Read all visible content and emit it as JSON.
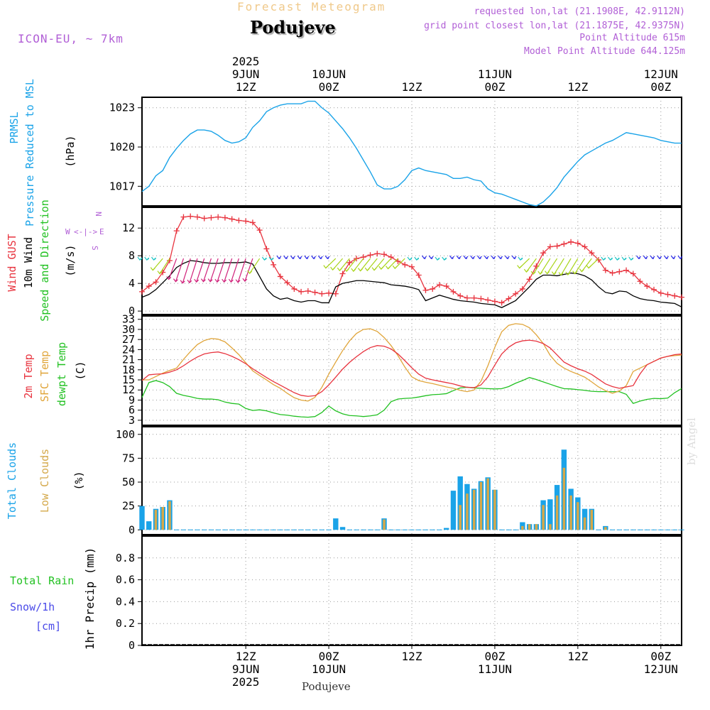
{
  "header": {
    "forecast_label": "Forecast Meteogram",
    "location": "Podujeve",
    "model": "ICON-EU, ~ 7km",
    "requested": "requested lon,lat (21.1908E, 42.9112N)",
    "grid_point": "grid point closest lon,lat (21.1875E, 42.9375N)",
    "point_altitude": "Point Altitude 615m",
    "model_altitude": "Model Point Altitude 644.125m",
    "footer_location": "Podujeve",
    "watermark": "by Angel"
  },
  "colors": {
    "pressure": "#1aa3e8",
    "gust": "#e8343f",
    "wind": "#000000",
    "temp2m": "#e8343f",
    "sfc": "#e0a53a",
    "dewpt": "#22c122",
    "total_clouds": "#1aa3e8",
    "low_clouds": "#d4a84a",
    "rain": "#22c122",
    "snow": "#4a4ae8",
    "purple": "#b15fd6"
  },
  "time_axis": {
    "hours": 78,
    "x_start_hour": -3,
    "top_labels": [
      {
        "hour": 12,
        "lines": [
          "2025",
          "9JUN",
          "12Z"
        ]
      },
      {
        "hour": 24,
        "lines": [
          "10JUN",
          "00Z"
        ]
      },
      {
        "hour": 36,
        "lines": [
          "12Z"
        ]
      },
      {
        "hour": 48,
        "lines": [
          "11JUN",
          "00Z"
        ]
      },
      {
        "hour": 60,
        "lines": [
          "12Z"
        ]
      },
      {
        "hour": 72,
        "lines": [
          "12JUN",
          "00Z"
        ]
      }
    ],
    "bottom_labels": [
      {
        "hour": 12,
        "lines": [
          "12Z",
          "9JUN",
          "2025"
        ]
      },
      {
        "hour": 24,
        "lines": [
          "00Z",
          "10JUN"
        ]
      },
      {
        "hour": 36,
        "lines": [
          "12Z"
        ]
      },
      {
        "hour": 48,
        "lines": [
          "00Z",
          "11JUN"
        ]
      },
      {
        "hour": 60,
        "lines": [
          "12Z"
        ]
      },
      {
        "hour": 72,
        "lines": [
          "00Z",
          "12JUN"
        ]
      }
    ]
  },
  "panel_labels": {
    "pressure": [
      {
        "text": "PRMSL",
        "color": "#1aa3e8"
      },
      {
        "text": "Pressure Reduced to MSL",
        "color": "#1aa3e8"
      },
      {
        "text": "(hPa)",
        "color": "#000000"
      }
    ],
    "wind": [
      {
        "text": "Wind GUST",
        "color": "#e8343f"
      },
      {
        "text": "10m Wind",
        "color": "#000000"
      },
      {
        "text": "Speed and Direction",
        "color": "#22c122"
      },
      {
        "text": "(m/s)",
        "color": "#000000"
      }
    ],
    "compass": {
      "n": "N",
      "s": "S",
      "w": "W",
      "e": "E"
    },
    "temp": [
      {
        "text": "2m Temp",
        "color": "#e8343f"
      },
      {
        "text": "SFC Temp",
        "color": "#e0a53a"
      },
      {
        "text": "dewpt Temp",
        "color": "#22c122"
      },
      {
        "text": "(C)",
        "color": "#000000"
      }
    ],
    "clouds": [
      {
        "text": "Total Clouds",
        "color": "#1aa3e8"
      },
      {
        "text": "Low Clouds",
        "color": "#d4a84a"
      },
      {
        "text": "(%)",
        "color": "#000000"
      }
    ],
    "precip_left": [
      {
        "text": "Total  Rain",
        "color": "#22c122"
      },
      {
        "text": "Snow/1h",
        "color": "#4a4ae8"
      },
      {
        "text": "[cm]",
        "color": "#4a4ae8"
      }
    ],
    "precip_axis": "1hr Precip (mm)"
  },
  "chart_data": [
    {
      "type": "line",
      "name": "pressure",
      "ylabel": "(hPa)",
      "ylim": [
        1015.5,
        1023.8
      ],
      "yticks": [
        1017,
        1020,
        1023
      ],
      "hours": [
        -3,
        -2,
        -1,
        0,
        1,
        2,
        3,
        4,
        5,
        6,
        7,
        8,
        9,
        10,
        11,
        12,
        13,
        14,
        15,
        16,
        17,
        18,
        19,
        20,
        21,
        22,
        23,
        24,
        25,
        26,
        27,
        28,
        29,
        30,
        31,
        32,
        33,
        34,
        35,
        36,
        37,
        38,
        39,
        40,
        41,
        42,
        43,
        44,
        45,
        46,
        47,
        48,
        49,
        50,
        51,
        52,
        53,
        54,
        55,
        56,
        57,
        58,
        59,
        60,
        61,
        62,
        63,
        64,
        65,
        66,
        67,
        68,
        69,
        70,
        71,
        72,
        73,
        74,
        75
      ],
      "values": [
        1016.6,
        1017.0,
        1017.8,
        1018.2,
        1019.2,
        1019.9,
        1020.5,
        1021.0,
        1021.3,
        1021.3,
        1021.2,
        1020.9,
        1020.5,
        1020.3,
        1020.4,
        1020.7,
        1021.5,
        1022.0,
        1022.7,
        1023.0,
        1023.2,
        1023.3,
        1023.3,
        1023.3,
        1023.5,
        1023.5,
        1023.0,
        1022.6,
        1022.0,
        1021.4,
        1020.7,
        1019.9,
        1019.0,
        1018.1,
        1017.1,
        1016.8,
        1016.8,
        1017.0,
        1017.5,
        1018.2,
        1018.4,
        1018.2,
        1018.1,
        1018.0,
        1017.9,
        1017.6,
        1017.6,
        1017.7,
        1017.5,
        1017.4,
        1016.8,
        1016.5,
        1016.4,
        1016.2,
        1016.0,
        1015.8,
        1015.6,
        1015.5,
        1015.8,
        1016.3,
        1016.9,
        1017.7,
        1018.3,
        1018.9,
        1019.4,
        1019.7,
        1020.0,
        1020.3,
        1020.5,
        1020.8,
        1021.1,
        1021.0,
        1020.9,
        1020.8,
        1020.7,
        1020.5,
        1020.4,
        1020.3,
        1020.3
      ]
    },
    {
      "type": "line",
      "name": "wind",
      "ylabel": "(m/s)",
      "ylim": [
        -0.5,
        15
      ],
      "yticks": [
        0,
        4,
        8,
        12
      ],
      "hours": [
        -3,
        -2,
        -1,
        0,
        1,
        2,
        3,
        4,
        5,
        6,
        7,
        8,
        9,
        10,
        11,
        12,
        13,
        14,
        15,
        16,
        17,
        18,
        19,
        20,
        21,
        22,
        23,
        24,
        25,
        26,
        27,
        28,
        29,
        30,
        31,
        32,
        33,
        34,
        35,
        36,
        37,
        38,
        39,
        40,
        41,
        42,
        43,
        44,
        45,
        46,
        47,
        48,
        49,
        50,
        51,
        52,
        53,
        54,
        55,
        56,
        57,
        58,
        59,
        60,
        61,
        62,
        63,
        64,
        65,
        66,
        67,
        68,
        69,
        70,
        71,
        72,
        73,
        74,
        75
      ],
      "series": [
        {
          "name": "Wind GUST",
          "values": [
            2.8,
            3.6,
            4.2,
            5.6,
            7.3,
            11.6,
            13.6,
            13.7,
            13.6,
            13.4,
            13.5,
            13.6,
            13.5,
            13.3,
            13.1,
            13.0,
            12.8,
            11.7,
            9.0,
            6.7,
            5.0,
            4.1,
            3.2,
            2.8,
            2.9,
            2.7,
            2.5,
            2.6,
            2.5,
            5.4,
            7.0,
            7.6,
            7.8,
            8.1,
            8.3,
            8.2,
            7.8,
            7.2,
            6.7,
            6.4,
            5.2,
            3.0,
            3.2,
            3.8,
            3.6,
            2.8,
            2.2,
            1.9,
            1.9,
            1.8,
            1.6,
            1.4,
            1.2,
            1.8,
            2.5,
            3.2,
            4.6,
            6.5,
            8.4,
            9.3,
            9.4,
            9.7,
            10.0,
            9.8,
            9.3,
            8.4,
            7.4,
            5.9,
            5.5,
            5.7,
            5.9,
            5.4,
            4.3,
            3.6,
            3.1,
            2.6,
            2.4,
            2.2,
            2.0
          ]
        },
        {
          "name": "10m Wind",
          "values": [
            2.0,
            2.4,
            3.1,
            4.1,
            5.1,
            6.3,
            6.9,
            7.3,
            7.2,
            7.0,
            6.9,
            6.9,
            7.0,
            7.0,
            7.0,
            7.1,
            6.8,
            5.0,
            3.2,
            2.2,
            1.7,
            1.9,
            1.5,
            1.3,
            1.5,
            1.5,
            1.2,
            1.2,
            3.5,
            4.0,
            4.2,
            4.4,
            4.4,
            4.3,
            4.2,
            4.1,
            3.8,
            3.7,
            3.6,
            3.4,
            3.1,
            1.5,
            1.9,
            2.3,
            2.0,
            1.7,
            1.5,
            1.4,
            1.3,
            1.1,
            1.0,
            0.9,
            0.5,
            1.0,
            1.5,
            2.5,
            3.5,
            4.6,
            5.2,
            5.2,
            5.1,
            5.3,
            5.5,
            5.4,
            5.1,
            4.5,
            3.5,
            2.7,
            2.5,
            2.9,
            2.8,
            2.2,
            1.8,
            1.6,
            1.5,
            1.3,
            1.2,
            1.1,
            0.6
          ]
        }
      ]
    },
    {
      "type": "line",
      "name": "temperature",
      "ylabel": "(C)",
      "ylim": [
        1.5,
        34
      ],
      "yticks": [
        3,
        6,
        9,
        12,
        15,
        18,
        21,
        24,
        27,
        30,
        33
      ],
      "hours": [
        -3,
        -2,
        -1,
        0,
        1,
        2,
        3,
        4,
        5,
        6,
        7,
        8,
        9,
        10,
        11,
        12,
        13,
        14,
        15,
        16,
        17,
        18,
        19,
        20,
        21,
        22,
        23,
        24,
        25,
        26,
        27,
        28,
        29,
        30,
        31,
        32,
        33,
        34,
        35,
        36,
        37,
        38,
        39,
        40,
        41,
        42,
        43,
        44,
        45,
        46,
        47,
        48,
        49,
        50,
        51,
        52,
        53,
        54,
        55,
        56,
        57,
        58,
        59,
        60,
        61,
        62,
        63,
        64,
        65,
        66,
        67,
        68,
        69,
        70,
        71,
        72,
        73,
        74,
        75
      ],
      "series": [
        {
          "name": "2m Temp",
          "values": [
            14.8,
            16.5,
            16.7,
            16.8,
            17.3,
            18.0,
            19.2,
            20.6,
            21.8,
            22.7,
            23.1,
            23.3,
            22.8,
            22.0,
            21.0,
            19.8,
            18.3,
            17.0,
            15.7,
            14.5,
            13.4,
            12.3,
            11.2,
            10.4,
            10.1,
            10.3,
            11.5,
            13.5,
            15.8,
            18.2,
            20.2,
            21.9,
            23.4,
            24.6,
            25.2,
            25.0,
            24.2,
            22.7,
            20.7,
            18.6,
            16.7,
            15.5,
            15.0,
            14.6,
            14.2,
            13.8,
            13.2,
            12.8,
            12.7,
            13.5,
            15.9,
            19.4,
            22.7,
            24.7,
            26.0,
            26.6,
            26.8,
            26.5,
            25.8,
            24.5,
            22.4,
            20.3,
            19.2,
            18.3,
            17.6,
            16.6,
            15.2,
            13.8,
            13.0,
            12.5,
            12.9,
            13.3,
            16.8,
            19.5,
            20.5,
            21.5,
            22.0,
            22.5,
            22.7
          ]
        },
        {
          "name": "SFC Temp",
          "values": [
            15.0,
            15.0,
            16.0,
            17.0,
            17.8,
            18.5,
            21.1,
            23.4,
            25.5,
            26.7,
            27.3,
            27.1,
            26.3,
            24.5,
            22.5,
            20.1,
            17.7,
            16.3,
            15.0,
            13.6,
            12.5,
            11.0,
            9.7,
            9.0,
            8.7,
            9.8,
            12.8,
            16.7,
            20.3,
            23.7,
            26.6,
            28.8,
            30.0,
            30.2,
            29.4,
            27.6,
            25.2,
            22.2,
            18.8,
            15.9,
            14.8,
            14.3,
            13.9,
            13.4,
            12.9,
            12.5,
            11.9,
            11.5,
            12.0,
            14.6,
            19.2,
            24.7,
            29.3,
            31.2,
            31.7,
            31.5,
            30.5,
            28.4,
            25.8,
            22.3,
            19.9,
            18.5,
            17.5,
            16.7,
            15.8,
            14.4,
            12.9,
            11.8,
            11.0,
            11.7,
            13.3,
            17.5,
            18.5,
            19.5,
            20.5,
            21.5,
            22.0,
            22.2,
            22.4
          ]
        },
        {
          "name": "dewpt Temp",
          "values": [
            9.8,
            14.2,
            14.8,
            14.2,
            13.0,
            11.0,
            10.4,
            10.0,
            9.5,
            9.3,
            9.3,
            9.1,
            8.4,
            8.0,
            7.8,
            6.5,
            5.9,
            6.1,
            5.8,
            5.2,
            4.7,
            4.5,
            4.2,
            4.0,
            3.9,
            4.1,
            5.3,
            7.2,
            5.8,
            4.9,
            4.4,
            4.3,
            4.1,
            4.3,
            4.6,
            6.0,
            8.5,
            9.3,
            9.5,
            9.6,
            9.9,
            10.3,
            10.6,
            10.7,
            10.9,
            11.8,
            12.6,
            12.8,
            12.6,
            12.5,
            12.4,
            12.3,
            12.4,
            13.0,
            14.0,
            14.8,
            15.7,
            15.1,
            14.4,
            13.7,
            13.0,
            12.4,
            12.3,
            12.1,
            11.9,
            11.6,
            11.5,
            11.5,
            11.5,
            11.5,
            10.7,
            8.0,
            8.7,
            9.2,
            9.5,
            9.4,
            9.6,
            11.2,
            12.4
          ]
        }
      ]
    },
    {
      "type": "bar",
      "name": "clouds",
      "ylabel": "(%)",
      "ylim": [
        -5,
        108
      ],
      "yticks": [
        0,
        25,
        50,
        75,
        100
      ],
      "hours": [
        -3,
        -2,
        -1,
        0,
        1,
        2,
        3,
        4,
        5,
        6,
        7,
        8,
        9,
        10,
        11,
        12,
        13,
        14,
        15,
        16,
        17,
        18,
        19,
        20,
        21,
        22,
        23,
        24,
        25,
        26,
        27,
        28,
        29,
        30,
        31,
        32,
        33,
        34,
        35,
        36,
        37,
        38,
        39,
        40,
        41,
        42,
        43,
        44,
        45,
        46,
        47,
        48,
        49,
        50,
        51,
        52,
        53,
        54,
        55,
        56,
        57,
        58,
        59,
        60,
        61,
        62,
        63,
        64,
        65,
        66,
        67,
        68,
        69,
        70,
        71,
        72,
        73,
        74,
        75
      ],
      "series": [
        {
          "name": "Total Clouds",
          "values": [
            25,
            9,
            22,
            24,
            31,
            0,
            0,
            0,
            0,
            0,
            0,
            0,
            0,
            0,
            0,
            0,
            0,
            0,
            0,
            0,
            0,
            0,
            0,
            0,
            0,
            0,
            0,
            0,
            12,
            3,
            0,
            0,
            0,
            0,
            0,
            12,
            0,
            0,
            0,
            0,
            0,
            0,
            0,
            0,
            2,
            41,
            56,
            48,
            43,
            51,
            55,
            42,
            0,
            0,
            0,
            8,
            6,
            6,
            31,
            32,
            47,
            84,
            43,
            34,
            22,
            22,
            0,
            4,
            0,
            0,
            0,
            0,
            0,
            0,
            0,
            0,
            0,
            0,
            0
          ]
        },
        {
          "name": "Low Clouds",
          "values": [
            0,
            0,
            21,
            24,
            30,
            0,
            0,
            0,
            0,
            0,
            0,
            0,
            0,
            0,
            0,
            0,
            0,
            0,
            0,
            0,
            0,
            0,
            0,
            0,
            0,
            0,
            0,
            0,
            0,
            0,
            0,
            0,
            0,
            0,
            0,
            11,
            0,
            0,
            0,
            0,
            0,
            0,
            0,
            0,
            0,
            0,
            26,
            38,
            42,
            50,
            54,
            42,
            0,
            0,
            0,
            4,
            6,
            6,
            26,
            6,
            36,
            65,
            36,
            29,
            13,
            21,
            0,
            3,
            0,
            0,
            0,
            0,
            0,
            0,
            0,
            0,
            0,
            0,
            0
          ]
        }
      ]
    },
    {
      "type": "bar",
      "name": "precipitation",
      "ylabel": "1hr Precip (mm)",
      "ylim": [
        0,
        1.0
      ],
      "yticks": [
        0,
        0.2,
        0.4,
        0.6,
        0.8
      ],
      "series": [
        {
          "name": "Total Rain",
          "values": []
        },
        {
          "name": "Snow/1h",
          "values": []
        }
      ]
    }
  ]
}
